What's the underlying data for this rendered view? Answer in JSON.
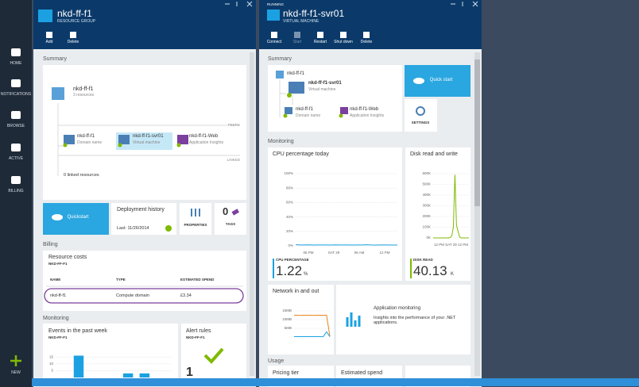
{
  "nav": {
    "items": [
      "HOME",
      "NOTIFICATIONS",
      "BROWSE",
      "ACTIVE",
      "BILLING"
    ],
    "new": "NEW"
  },
  "group": {
    "title": "nkd-ff-f1",
    "subtitle": "RESOURCE GROUP",
    "commands": [
      "Add",
      "Delete"
    ],
    "summary": {
      "heading": "Summary",
      "name": "nkd-ff-f1",
      "count": "3 resources",
      "peers": "PEERS",
      "linked": "LINKED",
      "linked_text": "0 linked resources",
      "nodes": [
        {
          "name": "nkd-ff-f1",
          "type": "Domain name"
        },
        {
          "name": "nkd-ff-f1-svr01",
          "type": "Virtual machine"
        },
        {
          "name": "nkd-ff-f1-Web",
          "type": "Application Insights"
        }
      ]
    },
    "tiles": {
      "quickstart": "Quickstart",
      "deployment": "Deployment history",
      "deployment_last": "Last: 11/26/2014",
      "properties": "PROPERTIES",
      "tags_count": "0",
      "tags": "TAGS"
    },
    "billing": {
      "heading": "Billing",
      "title": "Resource costs",
      "subtitle": "NKD-FF-F1",
      "columns": [
        "NAME",
        "TYPE",
        "ESTIMATED SPEND"
      ],
      "rows": [
        [
          "nkd-ff-f1",
          "Compute domain",
          "£3.34"
        ]
      ]
    },
    "monitoring": {
      "heading": "Monitoring",
      "events": {
        "title": "Events in the past week",
        "subtitle": "NKD-FF-F1",
        "ylim": [
          0,
          18
        ],
        "yticks": [
          5,
          10,
          15
        ],
        "values": [
          0,
          16,
          0,
          0,
          3,
          3,
          0
        ],
        "color": "#1ba1e2"
      },
      "alerts": {
        "title": "Alert rules",
        "subtitle": "NKD-FF-F1",
        "count": "1"
      }
    }
  },
  "vm": {
    "status": "RUNNING",
    "title": "nkd-ff-f1-svr01",
    "subtitle": "VIRTUAL MACHINE",
    "commands": [
      "Connect",
      "Start",
      "Restart",
      "Shut down",
      "Delete"
    ],
    "summary": {
      "heading": "Summary",
      "root": "nkd-ff-f1",
      "vm_name": "nkd-ff-f1-svr01",
      "vm_type": "Virtual machine",
      "nodes": [
        {
          "name": "nkd-ff-f1",
          "type": "Domain name"
        },
        {
          "name": "nkd-ff-f1-Web",
          "type": "Application Insights"
        }
      ],
      "quickstart": "Quick start",
      "settings": "SETTINGS"
    },
    "monitoring": {
      "heading": "Monitoring",
      "cpu": {
        "title": "CPU percentage today",
        "ylim": [
          0,
          100
        ],
        "yticks": [
          {
            "value": 0,
            "label": "0%"
          },
          {
            "value": 20,
            "label": "20%"
          },
          {
            "value": 40,
            "label": "40%"
          },
          {
            "value": 60,
            "label": "60%"
          },
          {
            "value": 80,
            "label": "80%"
          },
          {
            "value": 100,
            "label": "100%"
          }
        ],
        "xlabels": [
          "06 PM",
          "SAT 29",
          "06 AM",
          "12 PM"
        ],
        "series": [
          {
            "name": "CPU percentage",
            "color": "#1ba1e2",
            "values": [
              1.5,
              1.3,
              1.2,
              1.4,
              1.1,
              1.2,
              1.3,
              1.2,
              1.1,
              1.4,
              1.3,
              1.2,
              1.2,
              1.1,
              1.3,
              1.2,
              1.5,
              1.2,
              1.1,
              1.2,
              1.3,
              1.2,
              1.1,
              1.2
            ]
          }
        ],
        "stat_label": "CPU PERCENTAGE",
        "stat_value": "1.22",
        "stat_unit": "%"
      },
      "disk": {
        "title": "Disk read and write",
        "ylim": [
          0,
          600000
        ],
        "yticks": [
          {
            "value": 0,
            "label": "0K"
          },
          {
            "value": 100000,
            "label": "100K"
          },
          {
            "value": 200000,
            "label": "200K"
          },
          {
            "value": 300000,
            "label": "300K"
          },
          {
            "value": 400000,
            "label": "400K"
          },
          {
            "value": 500000,
            "label": "500K"
          },
          {
            "value": 600000,
            "label": "600K"
          }
        ],
        "xlabels": [
          "12 PM",
          "SAT 29",
          "12 PM"
        ],
        "series": [
          {
            "name": "Disk read",
            "color": "#7fba00",
            "values": [
              0,
              0,
              0,
              0,
              0,
              0,
              0,
              0,
              0,
              0,
              0,
              5000,
              20000,
              100000,
              590000,
              120000,
              60000,
              10000,
              0,
              0,
              0,
              0,
              0,
              0
            ]
          }
        ],
        "stat_label": "DISK READ",
        "stat_value": "40.13",
        "stat_unit": "K"
      },
      "network": {
        "title": "Network in and out",
        "ylim": [
          0,
          15
        ],
        "yticks": [
          {
            "value": 5,
            "label": "5MB"
          },
          {
            "value": 10,
            "label": "10MB"
          },
          {
            "value": 15,
            "label": "15MB"
          }
        ],
        "series": [
          {
            "name": "Network in",
            "color": "#e8821a",
            "values": [
              12.5,
              12.5,
              12.4,
              12.5,
              12.5,
              12.5,
              12.4,
              12.5,
              12.5,
              12.5,
              12.5,
              0.5
            ]
          },
          {
            "name": "Network out",
            "color": "#1ba1e2",
            "values": [
              0.2,
              0.2,
              0.2,
              0.2,
              0.2,
              0.2,
              0.2,
              0.2,
              0.2,
              0.3,
              3,
              0.2
            ]
          }
        ]
      },
      "app": {
        "title": "Application monitoring",
        "description": "Insights into the performance of your .NET applications."
      }
    },
    "usage": {
      "heading": "Usage",
      "pricing": "Pricing tier",
      "spend": "Estimated spend"
    }
  }
}
